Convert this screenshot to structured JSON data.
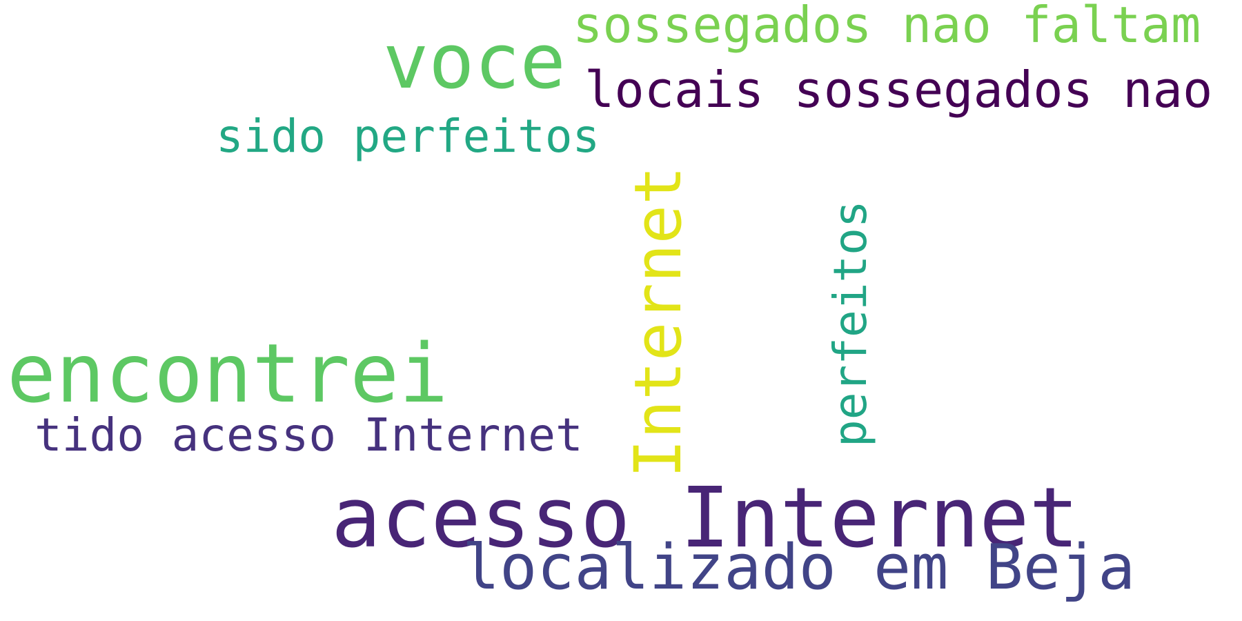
{
  "words": [
    {
      "key": "acesso_internet",
      "text": "acesso Internet",
      "color": "#482576"
    },
    {
      "key": "encontrei",
      "text": "encontrei",
      "color": "#5dc863"
    },
    {
      "key": "localizado",
      "text": "localizado em Beja",
      "color": "#414487"
    },
    {
      "key": "voce",
      "text": "voce",
      "color": "#5dc863"
    },
    {
      "key": "locais",
      "text": "locais sossegados nao",
      "color": "#440154"
    },
    {
      "key": "sossegados",
      "text": "sossegados nao faltam",
      "color": "#7ad151"
    },
    {
      "key": "sido",
      "text": "sido perfeitos",
      "color": "#22a884"
    },
    {
      "key": "tido",
      "text": "tido acesso Internet",
      "color": "#46327e"
    },
    {
      "key": "internet_vertical",
      "text": "Internet",
      "color": "#e2e418",
      "orientation": "vertical"
    },
    {
      "key": "perfeitos_vertical",
      "text": "perfeitos",
      "color": "#21a585",
      "orientation": "vertical"
    }
  ]
}
